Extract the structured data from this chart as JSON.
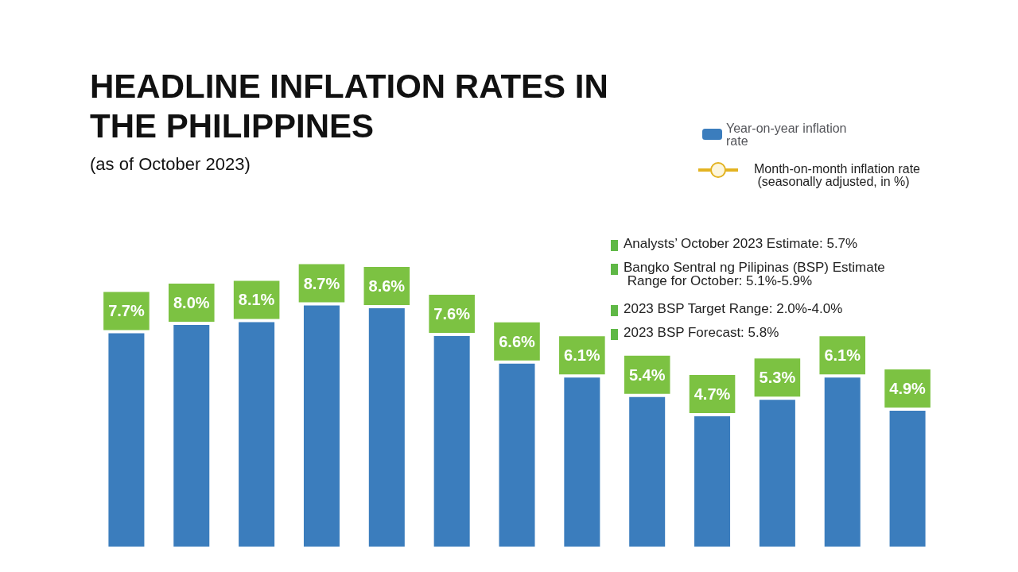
{
  "chart_data": {
    "type": "bar",
    "title": "HEADLINE INFLATION RATES IN THE PHILIPPINES",
    "subtitle": "(as of October 2023)",
    "categories": [
      null,
      null,
      null,
      null,
      null,
      null,
      null,
      null,
      null,
      null,
      null,
      null,
      null
    ],
    "series": [
      {
        "name": "Year-on-year inflation rate",
        "color": "#3b7dbd",
        "values": [
          7.7,
          8.0,
          8.1,
          8.7,
          8.6,
          7.6,
          6.6,
          6.1,
          5.4,
          4.7,
          5.3,
          6.1,
          4.9
        ],
        "value_labels": [
          "7.7%",
          "8.0%",
          "8.1%",
          "8.7%",
          "8.6%",
          "7.6%",
          "6.6%",
          "6.1%",
          "5.4%",
          "4.7%",
          "5.3%",
          "6.1%",
          "4.9%"
        ]
      }
    ],
    "annotations": [
      "Month-on-month inflation rate (seasonally adjusted, in %)",
      "Analysts’ October 2023 Estimate: 5.7%",
      "Bangko Sentral ng Pilipinas (BSP) Estimate Range for October: 5.1%-5.9%",
      "2023 BSP Target Range: 2.0%-4.0%",
      "2023 BSP Forecast: 5.8%"
    ],
    "legend": "top right",
    "grid": false
  }
}
